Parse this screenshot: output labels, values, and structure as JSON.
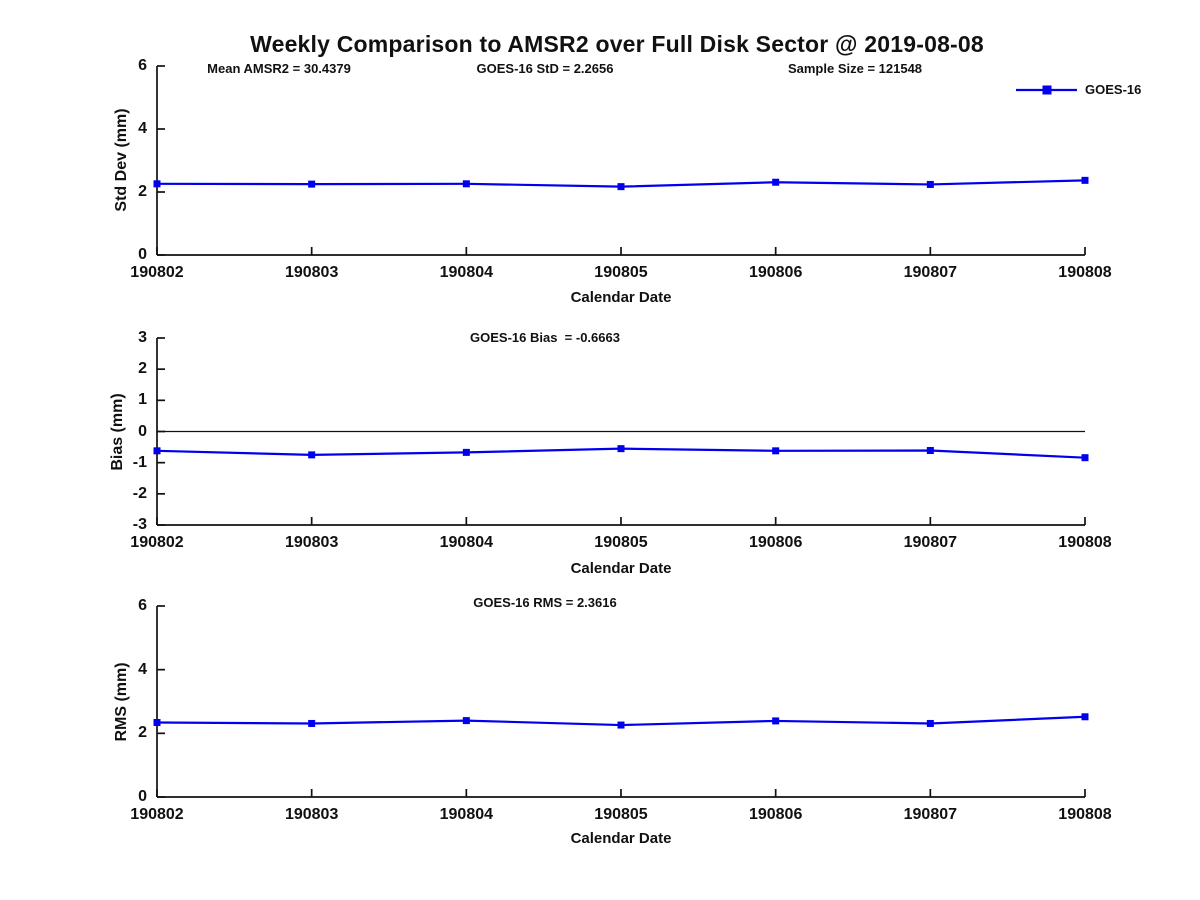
{
  "title": "Weekly Comparison to AMSR2 over Full Disk Sector @ 2019-08-08",
  "accent_color": "#0000EE",
  "axis_color": "#111111",
  "legend": {
    "label": "GOES-16",
    "position": "top-right"
  },
  "chart_data": [
    {
      "id": "std-dev",
      "type": "line",
      "annotations": [
        "Mean AMSR2 = 30.4379",
        "GOES-16 StD = 2.2656",
        "Sample Size = 121548"
      ],
      "categories": [
        "190802",
        "190803",
        "190804",
        "190805",
        "190806",
        "190807",
        "190808"
      ],
      "series": [
        {
          "name": "GOES-16",
          "values": [
            2.26,
            2.25,
            2.26,
            2.17,
            2.31,
            2.24,
            2.37
          ]
        }
      ],
      "xlabel": "Calendar Date",
      "ylabel": "Std Dev (mm)",
      "ylim": [
        0,
        6
      ],
      "yticks": [
        0,
        2,
        4,
        6
      ],
      "marker": "square",
      "grid": false,
      "zero_line": false,
      "legend_visible": true
    },
    {
      "id": "bias",
      "type": "line",
      "annotations": [
        "GOES-16 Bias  = -0.6663"
      ],
      "categories": [
        "190802",
        "190803",
        "190804",
        "190805",
        "190806",
        "190807",
        "190808"
      ],
      "series": [
        {
          "name": "GOES-16",
          "values": [
            -0.62,
            -0.75,
            -0.67,
            -0.55,
            -0.62,
            -0.61,
            -0.84
          ]
        }
      ],
      "xlabel": "Calendar Date",
      "ylabel": "Bias (mm)",
      "ylim": [
        -3,
        3
      ],
      "yticks": [
        -3,
        -2,
        -1,
        0,
        1,
        2,
        3
      ],
      "marker": "square",
      "grid": false,
      "zero_line": true,
      "legend_visible": false
    },
    {
      "id": "rms",
      "type": "line",
      "annotations": [
        "GOES-16 RMS = 2.3616"
      ],
      "categories": [
        "190802",
        "190803",
        "190804",
        "190805",
        "190806",
        "190807",
        "190808"
      ],
      "series": [
        {
          "name": "GOES-16",
          "values": [
            2.34,
            2.31,
            2.4,
            2.26,
            2.39,
            2.31,
            2.52
          ]
        }
      ],
      "xlabel": "Calendar Date",
      "ylabel": "RMS (mm)",
      "ylim": [
        0,
        6
      ],
      "yticks": [
        0,
        2,
        4,
        6
      ],
      "marker": "square",
      "grid": false,
      "zero_line": false,
      "legend_visible": false
    }
  ]
}
